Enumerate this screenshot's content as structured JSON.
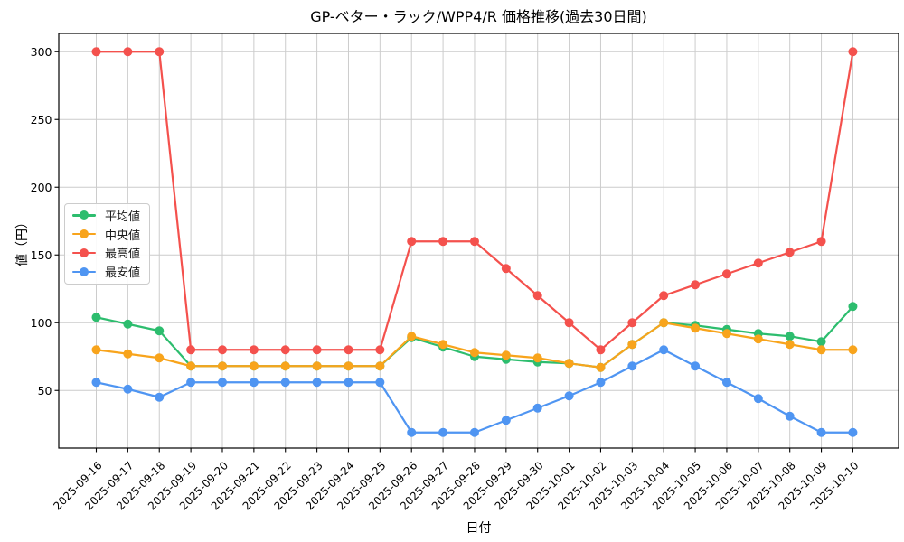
{
  "chart_data": {
    "type": "line",
    "title": "GP-ベター・ラック/WPP4/R 価格推移(過去30日間)",
    "xlabel": "日付",
    "ylabel": "値（円）",
    "grid": true,
    "legend_loc": "center left",
    "categories": [
      "2025-09-16",
      "2025-09-17",
      "2025-09-18",
      "2025-09-19",
      "2025-09-20",
      "2025-09-21",
      "2025-09-22",
      "2025-09-23",
      "2025-09-24",
      "2025-09-25",
      "2025-09-26",
      "2025-09-27",
      "2025-09-28",
      "2025-09-29",
      "2025-09-30",
      "2025-10-01",
      "2025-10-02",
      "2025-10-03",
      "2025-10-04",
      "2025-10-05",
      "2025-10-06",
      "2025-10-07",
      "2025-10-08",
      "2025-10-09",
      "2025-10-10"
    ],
    "y_ticks": [
      50,
      100,
      150,
      200,
      250,
      300
    ],
    "xlim": [
      -1.19,
      25.45
    ],
    "ylim": [
      7.5,
      313.5
    ],
    "colors": {
      "grid": "#cccccc",
      "frame": "#000000",
      "average": "#2dbd6e",
      "median": "#f8a41c",
      "max": "#f4514d",
      "min": "#4f95f2"
    },
    "series": [
      {
        "key": "average",
        "name": "平均値",
        "color": "#2dbd6e",
        "values": [
          104,
          99,
          94,
          68,
          68,
          68,
          68,
          68,
          68,
          68,
          89,
          82,
          75,
          73,
          71,
          70,
          67,
          84,
          100,
          98,
          95,
          92,
          90,
          86,
          112
        ]
      },
      {
        "key": "median",
        "name": "中央値",
        "color": "#f8a41c",
        "values": [
          80,
          77,
          74,
          68,
          68,
          68,
          68,
          68,
          68,
          68,
          90,
          84,
          78,
          76,
          74,
          70,
          67,
          84,
          100,
          96,
          92,
          88,
          84,
          80,
          80
        ]
      },
      {
        "key": "max",
        "name": "最高値",
        "color": "#f4514d",
        "values": [
          300,
          300,
          300,
          80,
          80,
          80,
          80,
          80,
          80,
          80,
          160,
          160,
          160,
          140,
          120,
          100,
          80,
          100,
          120,
          128,
          136,
          144,
          152,
          160,
          300
        ]
      },
      {
        "key": "min",
        "name": "最安値",
        "color": "#4f95f2",
        "values": [
          56,
          51,
          45,
          56,
          56,
          56,
          56,
          56,
          56,
          56,
          19,
          19,
          19,
          28,
          37,
          46,
          56,
          68,
          80,
          68,
          56,
          44,
          31,
          19,
          19
        ]
      }
    ]
  }
}
